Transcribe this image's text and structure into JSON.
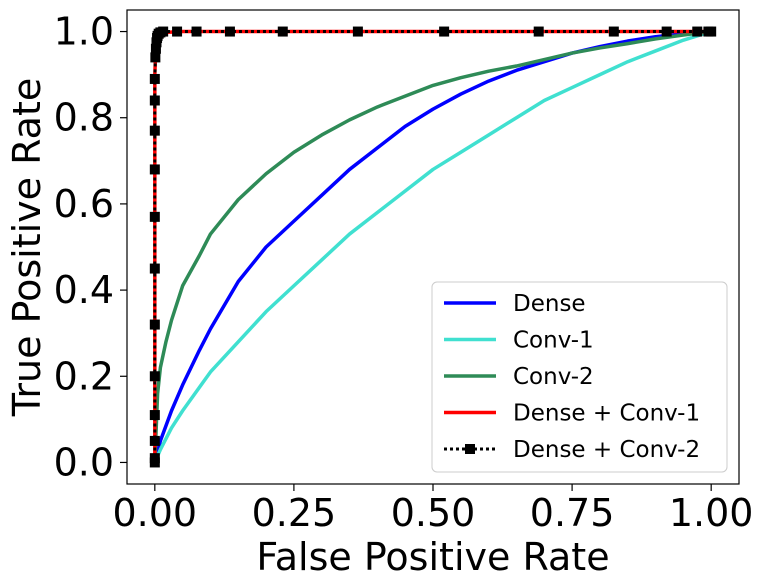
{
  "chart_data": {
    "type": "line",
    "title": "",
    "xlabel": "False Positive Rate",
    "ylabel": "True Positive Rate",
    "xlim": [
      -0.05,
      1.05
    ],
    "ylim": [
      -0.05,
      1.05
    ],
    "xticks": [
      0.0,
      0.25,
      0.5,
      0.75,
      1.0
    ],
    "xtick_labels": [
      "0.00",
      "0.25",
      "0.50",
      "0.75",
      "1.00"
    ],
    "yticks": [
      0.0,
      0.2,
      0.4,
      0.6,
      0.8,
      1.0
    ],
    "ytick_labels": [
      "0.0",
      "0.2",
      "0.4",
      "0.6",
      "0.8",
      "1.0"
    ],
    "grid": false,
    "legend_position": "lower-right",
    "series": [
      {
        "name": "Dense",
        "color": "#0000ff",
        "style": "solid",
        "marker": "none",
        "x": [
          0,
          0.01,
          0.03,
          0.05,
          0.08,
          0.1,
          0.15,
          0.2,
          0.25,
          0.3,
          0.35,
          0.4,
          0.45,
          0.5,
          0.55,
          0.6,
          0.65,
          0.7,
          0.75,
          0.8,
          0.85,
          0.9,
          0.95,
          1.0
        ],
        "y": [
          0,
          0.05,
          0.12,
          0.18,
          0.26,
          0.31,
          0.42,
          0.5,
          0.56,
          0.62,
          0.68,
          0.73,
          0.78,
          0.82,
          0.855,
          0.885,
          0.91,
          0.93,
          0.95,
          0.965,
          0.978,
          0.988,
          0.995,
          1.0
        ]
      },
      {
        "name": "Conv-1",
        "color": "#40e0d0",
        "style": "solid",
        "marker": "none",
        "x": [
          0,
          0.01,
          0.03,
          0.05,
          0.1,
          0.15,
          0.2,
          0.25,
          0.3,
          0.35,
          0.4,
          0.45,
          0.5,
          0.55,
          0.6,
          0.65,
          0.7,
          0.75,
          0.8,
          0.85,
          0.9,
          0.95,
          1.0
        ],
        "y": [
          0,
          0.03,
          0.08,
          0.12,
          0.21,
          0.28,
          0.35,
          0.41,
          0.47,
          0.53,
          0.58,
          0.63,
          0.68,
          0.72,
          0.76,
          0.8,
          0.84,
          0.87,
          0.9,
          0.93,
          0.955,
          0.98,
          1.0
        ]
      },
      {
        "name": "Conv-2",
        "color": "#2e8b57",
        "style": "solid",
        "marker": "none",
        "x": [
          0,
          0.005,
          0.01,
          0.02,
          0.03,
          0.05,
          0.08,
          0.1,
          0.15,
          0.2,
          0.25,
          0.3,
          0.35,
          0.4,
          0.45,
          0.5,
          0.55,
          0.6,
          0.65,
          0.7,
          0.75,
          0.8,
          0.85,
          0.9,
          0.95,
          1.0
        ],
        "y": [
          0,
          0.16,
          0.22,
          0.28,
          0.33,
          0.41,
          0.48,
          0.53,
          0.61,
          0.67,
          0.72,
          0.76,
          0.795,
          0.825,
          0.85,
          0.875,
          0.893,
          0.908,
          0.92,
          0.935,
          0.95,
          0.962,
          0.972,
          0.983,
          0.992,
          1.0
        ]
      },
      {
        "name": "Dense + Conv-1",
        "color": "#ff0000",
        "style": "solid",
        "marker": "none",
        "x": [
          0,
          0.0,
          0.0,
          0.002,
          0.005,
          0.01,
          0.02,
          0.05,
          0.1,
          0.3,
          0.5,
          0.75,
          1.0
        ],
        "y": [
          0,
          0.5,
          0.9,
          0.97,
          0.99,
          0.995,
          0.998,
          1.0,
          1.0,
          1.0,
          1.0,
          1.0,
          1.0
        ]
      },
      {
        "name": "Dense + Conv-2",
        "color": "#000000",
        "style": "dotted",
        "marker": "square",
        "x": [
          0,
          0.0,
          0.0,
          0.0,
          0.0,
          0.0,
          0.0,
          0.0,
          0.0,
          0.0,
          0.0,
          0.0,
          0.001,
          0.002,
          0.003,
          0.004,
          0.005,
          0.007,
          0.01,
          0.015,
          0.04,
          0.075,
          0.135,
          0.23,
          0.365,
          0.52,
          0.69,
          0.825,
          0.92,
          0.975,
          0.995,
          1.0
        ],
        "y": [
          0,
          0.01,
          0.05,
          0.11,
          0.2,
          0.32,
          0.45,
          0.57,
          0.68,
          0.77,
          0.84,
          0.89,
          0.94,
          0.96,
          0.975,
          0.985,
          0.99,
          0.995,
          0.998,
          1.0,
          1.0,
          1.0,
          1.0,
          1.0,
          1.0,
          1.0,
          1.0,
          1.0,
          1.0,
          1.0,
          1.0,
          1.0
        ]
      }
    ]
  }
}
